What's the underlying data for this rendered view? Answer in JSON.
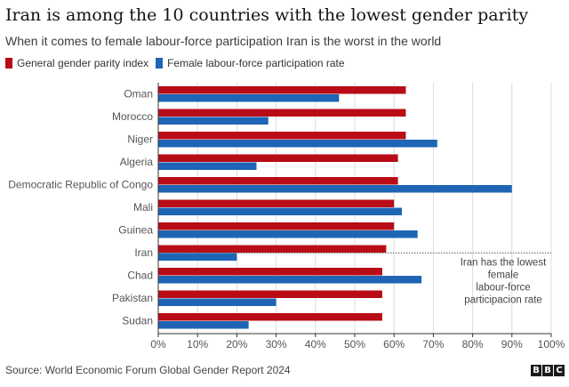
{
  "title": "Iran is among the 10 countries with the lowest gender parity",
  "subtitle": "When it comes to female labour-force participation Iran is the worst in the world",
  "source": "Source: World Economic Forum Global Gender Report 2024",
  "logo": [
    "B",
    "B",
    "C"
  ],
  "colors": {
    "parity": "#b80c16",
    "labour": "#1f65b5",
    "grid": "#dcdcdc",
    "axis": "#555555"
  },
  "chart_data": {
    "type": "bar",
    "orientation": "horizontal",
    "categories": [
      "Oman",
      "Morocco",
      "Niger",
      "Algeria",
      "Democratic Republic of Congo",
      "Mali",
      "Guinea",
      "Iran",
      "Chad",
      "Pakistan",
      "Sudan"
    ],
    "series": [
      {
        "name": "General gender parity index",
        "values": [
          63,
          63,
          63,
          61,
          61,
          60,
          60,
          58,
          57,
          57,
          57
        ]
      },
      {
        "name": "Female labour-force participation rate",
        "values": [
          46,
          28,
          71,
          25,
          90,
          62,
          66,
          20,
          67,
          30,
          23
        ]
      }
    ],
    "xlim": [
      0,
      100
    ],
    "x_ticks": [
      "0%",
      "10%",
      "20%",
      "30%",
      "40%",
      "50%",
      "60%",
      "70%",
      "80%",
      "90%",
      "100%"
    ],
    "grid": true,
    "legend_position": "top-left",
    "annotation": {
      "category": "Iran",
      "lines": [
        "Iran has the lowest",
        "female",
        "labour-force",
        "participacion rate"
      ]
    }
  }
}
